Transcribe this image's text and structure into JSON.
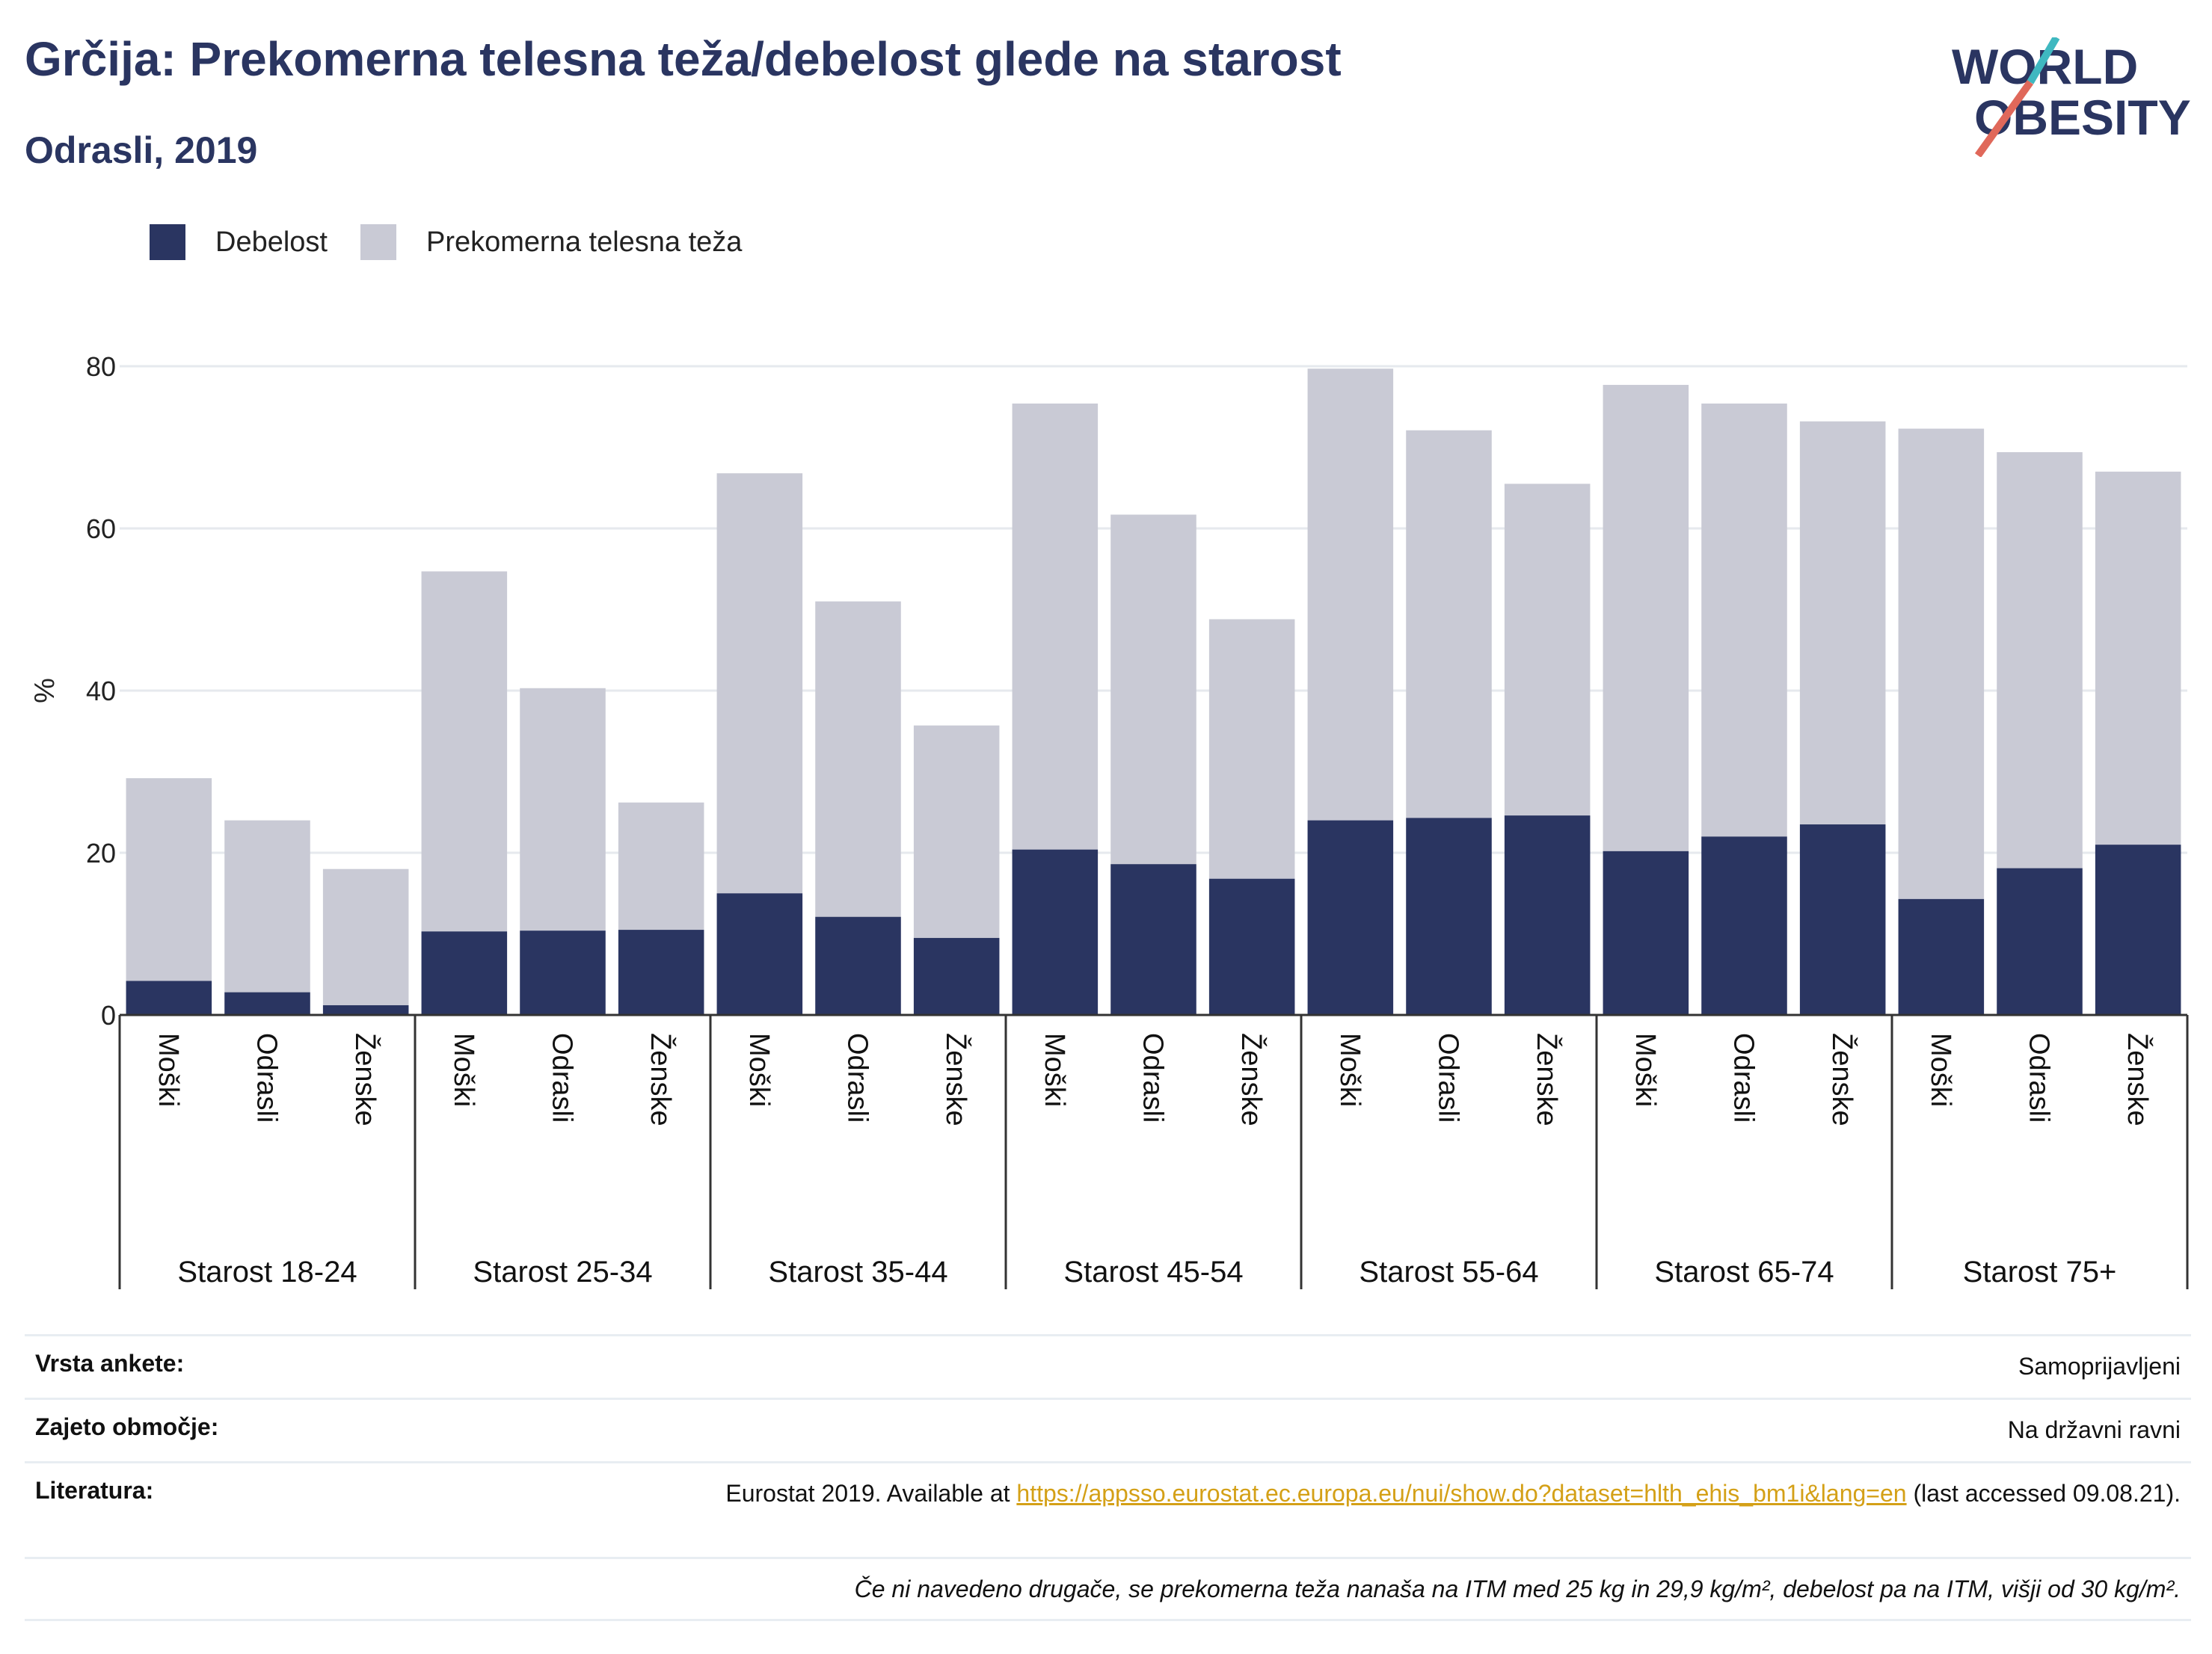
{
  "title": "Grčija: Prekomerna telesna teža/debelost glede na starost",
  "subtitle": "Odrasli, 2019",
  "logo": {
    "line1": "WORLD",
    "line2": "OBESITY"
  },
  "legend": {
    "obesity": "Debelost",
    "overweight": "Prekomerna telesna teža"
  },
  "colors": {
    "obesity": "#2a3561",
    "overweight": "#c9cad5",
    "grid": "#e6e9ee",
    "accent": "#d4a017",
    "logo_teal": "#3fb8c0",
    "logo_red": "#e0685a"
  },
  "chart_data": {
    "type": "bar",
    "stacked": true,
    "ylabel": "%",
    "ylim": [
      0,
      80
    ],
    "yticks": [
      0,
      20,
      40,
      60,
      80
    ],
    "grid": true,
    "legend_position": "top-left",
    "groups": [
      {
        "label": "Starost 18-24",
        "bars": [
          {
            "label": "Moški",
            "obesity": 4.2,
            "total": 29.2
          },
          {
            "label": "Odrasli",
            "obesity": 2.8,
            "total": 24.0
          },
          {
            "label": "Ženske",
            "obesity": 1.2,
            "total": 18.0
          }
        ]
      },
      {
        "label": "Starost 25-34",
        "bars": [
          {
            "label": "Moški",
            "obesity": 10.3,
            "total": 54.7
          },
          {
            "label": "Odrasli",
            "obesity": 10.4,
            "total": 40.3
          },
          {
            "label": "Ženske",
            "obesity": 10.5,
            "total": 26.2
          }
        ]
      },
      {
        "label": "Starost 35-44",
        "bars": [
          {
            "label": "Moški",
            "obesity": 15.0,
            "total": 66.8
          },
          {
            "label": "Odrasli",
            "obesity": 12.1,
            "total": 51.0
          },
          {
            "label": "Ženske",
            "obesity": 9.5,
            "total": 35.7
          }
        ]
      },
      {
        "label": "Starost 45-54",
        "bars": [
          {
            "label": "Moški",
            "obesity": 20.4,
            "total": 75.4
          },
          {
            "label": "Odrasli",
            "obesity": 18.6,
            "total": 61.7
          },
          {
            "label": "Ženske",
            "obesity": 16.8,
            "total": 48.8
          }
        ]
      },
      {
        "label": "Starost 55-64",
        "bars": [
          {
            "label": "Moški",
            "obesity": 24.0,
            "total": 79.7
          },
          {
            "label": "Odrasli",
            "obesity": 24.3,
            "total": 72.1
          },
          {
            "label": "Ženske",
            "obesity": 24.6,
            "total": 65.5
          }
        ]
      },
      {
        "label": "Starost 65-74",
        "bars": [
          {
            "label": "Moški",
            "obesity": 20.2,
            "total": 77.7
          },
          {
            "label": "Odrasli",
            "obesity": 22.0,
            "total": 75.4
          },
          {
            "label": "Ženske",
            "obesity": 23.5,
            "total": 73.2
          }
        ]
      },
      {
        "label": "Starost 75+",
        "bars": [
          {
            "label": "Moški",
            "obesity": 14.3,
            "total": 72.3
          },
          {
            "label": "Odrasli",
            "obesity": 18.1,
            "total": 69.4
          },
          {
            "label": "Ženske",
            "obesity": 21.0,
            "total": 67.0
          }
        ]
      }
    ]
  },
  "info": {
    "survey_label": "Vrsta ankete:",
    "survey_value": "Samoprijavljeni",
    "coverage_label": "Zajeto območje:",
    "coverage_value": "Na državni ravni",
    "reference_label": "Literatura:",
    "reference_prefix": "Eurostat 2019. Available at ",
    "reference_link": "https://appsso.eurostat.ec.europa.eu/nui/show.do?dataset=hlth_ehis_bm1i&lang=en",
    "reference_suffix": " (last accessed 09.08.21).",
    "note": "Če ni navedeno drugače, se prekomerna teža nanaša na ITM med 25 kg in 29,9 kg/m², debelost pa na ITM, višji od 30 kg/m²."
  }
}
